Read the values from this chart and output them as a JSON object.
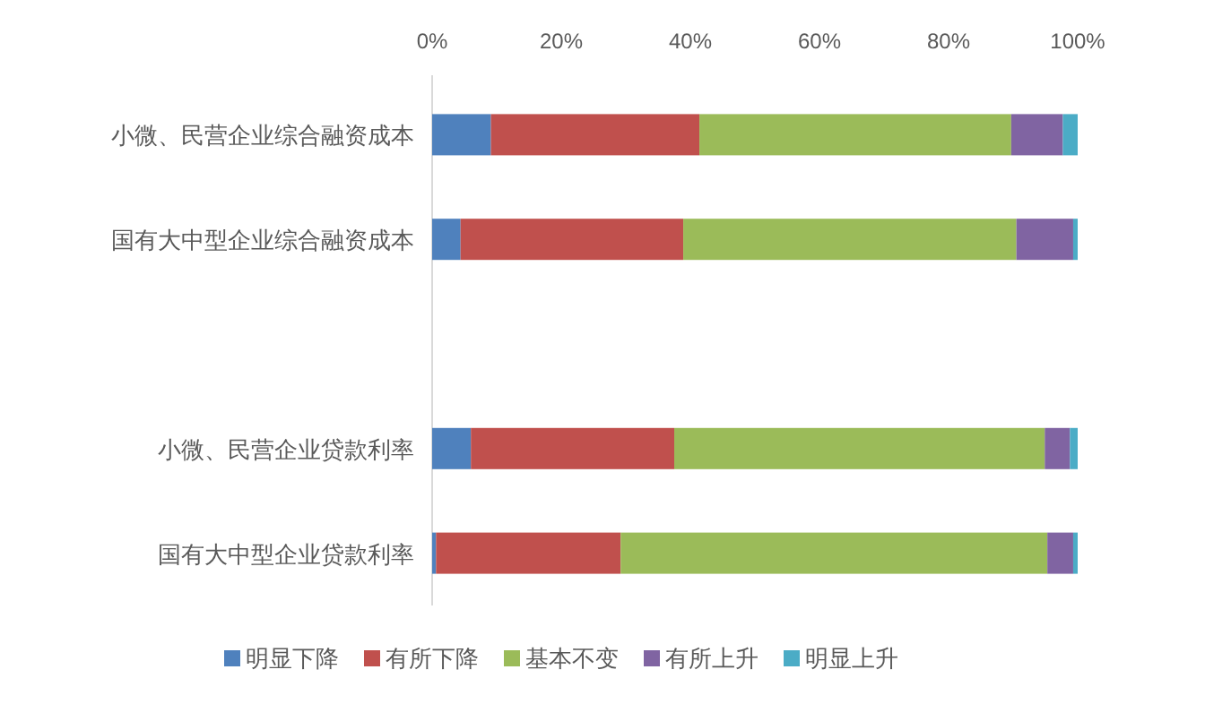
{
  "chart_data": {
    "type": "bar",
    "orientation": "horizontal",
    "stacked": true,
    "categories": [
      "小微、民营企业综合融资成本",
      "国有大中型企业综合融资成本",
      null,
      "小微、民营企业贷款利率",
      "国有大中型企业贷款利率"
    ],
    "series": [
      {
        "name": "明显下降",
        "color": "#4f81bd",
        "values": [
          9.1,
          4.4,
          null,
          6.0,
          0.6
        ]
      },
      {
        "name": "有所下降",
        "color": "#c0504d",
        "values": [
          32.3,
          34.5,
          null,
          31.5,
          28.6
        ]
      },
      {
        "name": "基本不变",
        "color": "#9bbb59",
        "values": [
          48.3,
          51.6,
          null,
          57.4,
          66.1
        ]
      },
      {
        "name": "有所上升",
        "color": "#8064a2",
        "values": [
          8.0,
          8.8,
          null,
          3.9,
          4.0
        ]
      },
      {
        "name": "明显上升",
        "color": "#4bacc6",
        "values": [
          2.3,
          0.7,
          null,
          1.2,
          0.7
        ]
      }
    ],
    "xlim": [
      0,
      100
    ],
    "xticks": [
      {
        "value": 0,
        "label": "0%"
      },
      {
        "value": 20,
        "label": "20%"
      },
      {
        "value": 40,
        "label": "40%"
      },
      {
        "value": 60,
        "label": "60%"
      },
      {
        "value": 80,
        "label": "80%"
      },
      {
        "value": 100,
        "label": "100%"
      }
    ],
    "grid": false,
    "legend": "bottom"
  }
}
